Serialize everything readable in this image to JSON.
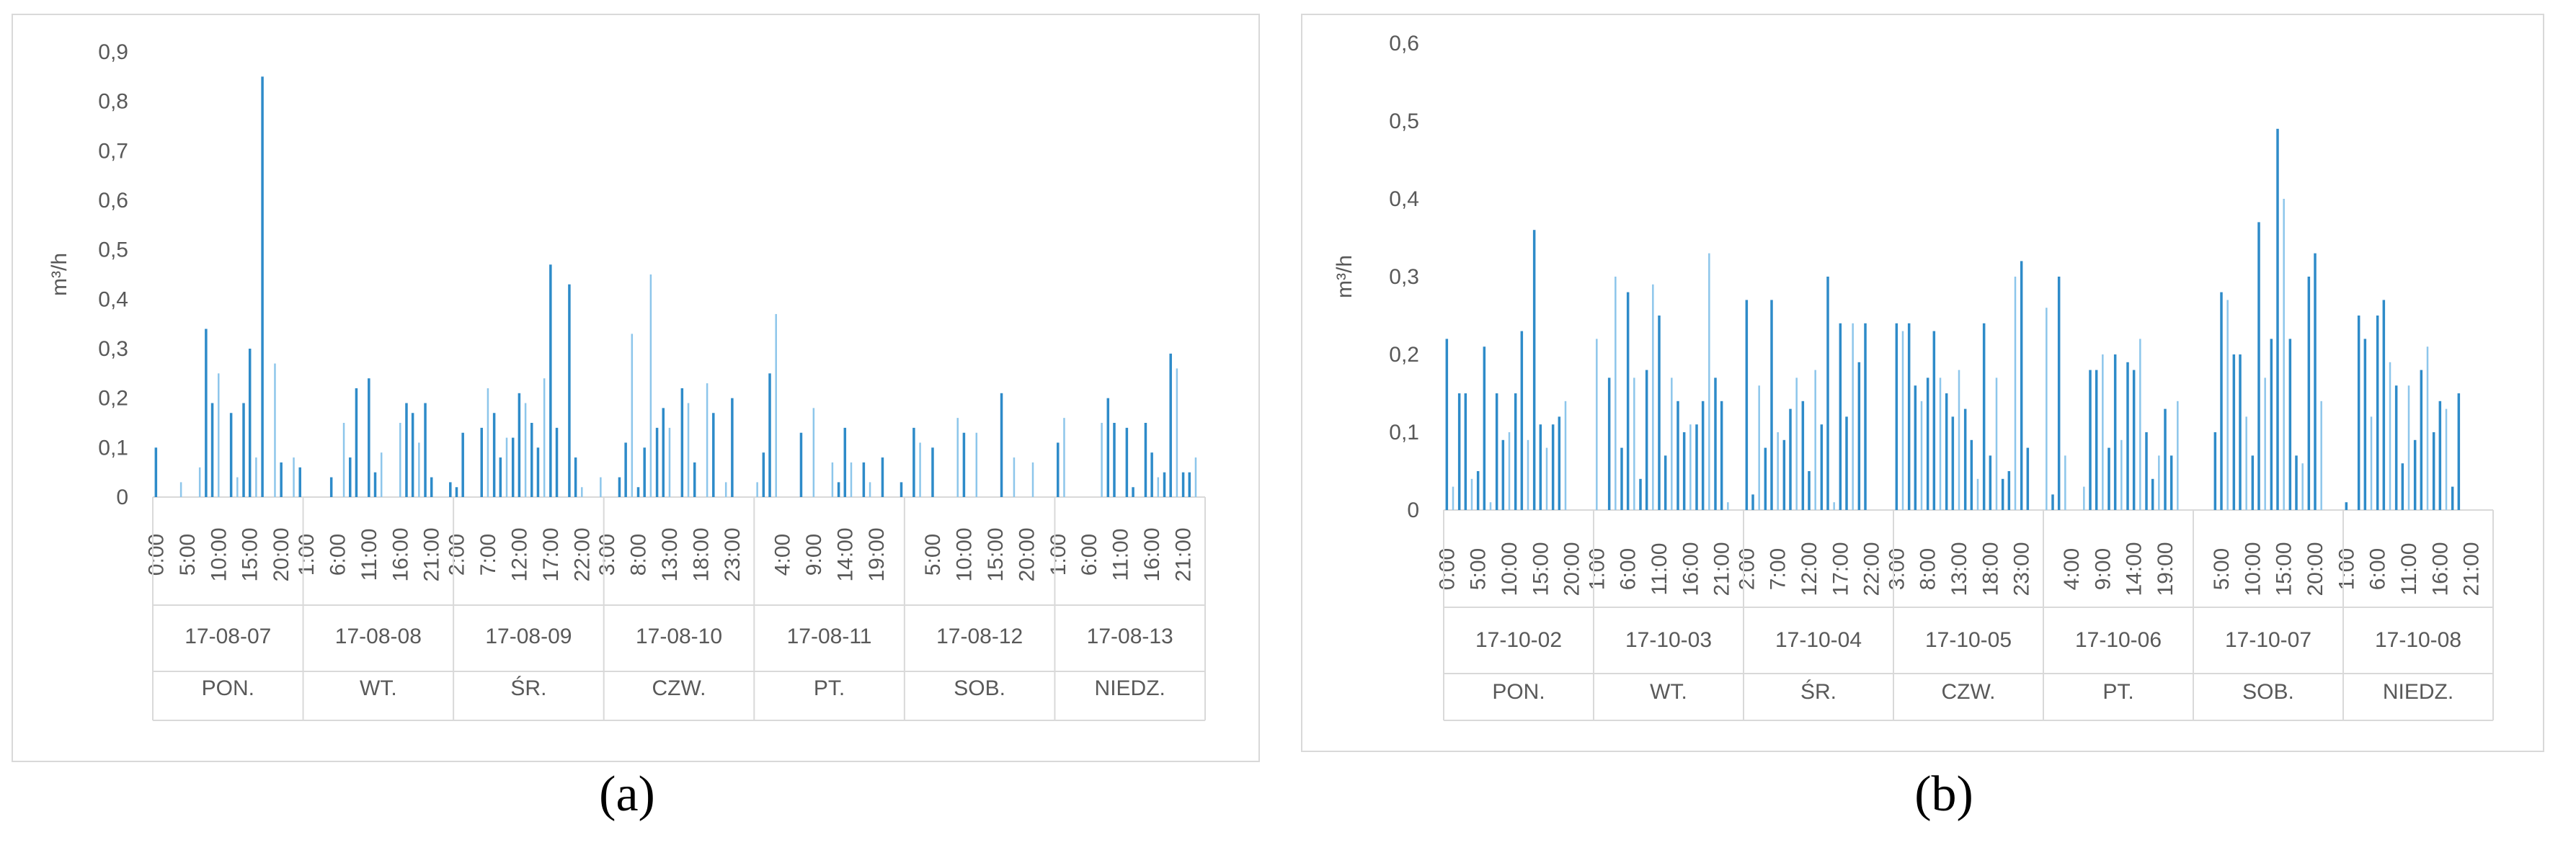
{
  "charts": [
    {
      "id": "a",
      "caption": "(a)",
      "chart_data": {
        "type": "bar",
        "ylabel": "m³/h",
        "ylim": [
          0,
          0.9
        ],
        "yticks": [
          "0",
          "0,1",
          "0,2",
          "0,3",
          "0,4",
          "0,5",
          "0,6",
          "0,7",
          "0,8",
          "0,9"
        ],
        "grid": false,
        "days": [
          {
            "date": "17-08-07",
            "weekday": "PON.",
            "start_hour": 0,
            "tick_labels": [
              "0:00",
              "5:00",
              "10:00",
              "15:00",
              "20:00"
            ],
            "values": [
              0.1,
              0,
              0,
              0,
              0.03,
              0,
              0,
              0.06,
              0.34,
              0.19,
              0.25,
              0,
              0.17,
              0.04,
              0.19,
              0.3,
              0.08,
              0.85,
              0,
              0.27,
              0.07,
              0,
              0.08,
              0.06
            ]
          },
          {
            "date": "17-08-08",
            "weekday": "WT.",
            "start_hour": 1,
            "tick_labels": [
              "1:00",
              "6:00",
              "11:00",
              "16:00",
              "21:00"
            ],
            "values": [
              0,
              0,
              0,
              0,
              0.04,
              0,
              0.15,
              0.08,
              0.22,
              0,
              0.24,
              0.05,
              0.09,
              0,
              0,
              0.15,
              0.19,
              0.17,
              0.11,
              0.19,
              0.04,
              0,
              0,
              0.03
            ]
          },
          {
            "date": "17-08-09",
            "weekday": "ŚR.",
            "start_hour": 2,
            "tick_labels": [
              "2:00",
              "7:00",
              "12:00",
              "17:00",
              "22:00"
            ],
            "values": [
              0.02,
              0.13,
              0,
              0,
              0.14,
              0.22,
              0.17,
              0.08,
              0.12,
              0.12,
              0.21,
              0.19,
              0.15,
              0.1,
              0.24,
              0.47,
              0.14,
              0,
              0.43,
              0.08,
              0.02,
              0,
              0,
              0.04
            ]
          },
          {
            "date": "17-08-10",
            "weekday": "CZW.",
            "start_hour": 3,
            "tick_labels": [
              "3:00",
              "8:00",
              "13:00",
              "18:00",
              "23:00"
            ],
            "values": [
              0,
              0,
              0.04,
              0.11,
              0.33,
              0.02,
              0.1,
              0.45,
              0.14,
              0.18,
              0.14,
              0,
              0.22,
              0.19,
              0.07,
              0,
              0.23,
              0.17,
              0,
              0.03,
              0.2,
              0,
              0,
              0
            ]
          },
          {
            "date": "17-08-11",
            "weekday": "PT.",
            "start_hour": 4,
            "tick_labels": [
              "4:00",
              "9:00",
              "14:00",
              "19:00"
            ],
            "values": [
              0.03,
              0.09,
              0.25,
              0.37,
              0,
              0,
              0,
              0.13,
              0,
              0.18,
              0,
              0,
              0.07,
              0.03,
              0.14,
              0.07,
              0,
              0.07,
              0.03,
              0,
              0.08,
              0,
              0,
              0.03
            ]
          },
          {
            "date": "17-08-12",
            "weekday": "SOB.",
            "start_hour": 0,
            "tick_labels": [
              "5:00",
              "10:00",
              "15:00",
              "20:00"
            ],
            "values": [
              0,
              0.14,
              0.11,
              0,
              0.1,
              0,
              0,
              0,
              0.16,
              0.13,
              0,
              0.13,
              0,
              0,
              0,
              0.21,
              0,
              0.08,
              0,
              0,
              0.07,
              0,
              0,
              0
            ]
          },
          {
            "date": "17-08-13",
            "weekday": "NIEDZ.",
            "start_hour": 1,
            "tick_labels": [
              "1:00",
              "6:00",
              "11:00",
              "16:00",
              "21:00"
            ],
            "values": [
              0.11,
              0.16,
              0,
              0,
              0,
              0,
              0,
              0.15,
              0.2,
              0.15,
              0,
              0.14,
              0.02,
              0,
              0.15,
              0.09,
              0.04,
              0.05,
              0.29,
              0.26,
              0.05,
              0.05,
              0.08,
              0
            ]
          }
        ]
      }
    },
    {
      "id": "b",
      "caption": "(b)",
      "chart_data": {
        "type": "bar",
        "ylabel": "m³/h",
        "ylim": [
          0,
          0.6
        ],
        "yticks": [
          "0",
          "0,1",
          "0,2",
          "0,3",
          "0,4",
          "0,5",
          "0,6"
        ],
        "grid": false,
        "days": [
          {
            "date": "17-10-02",
            "weekday": "PON.",
            "start_hour": 0,
            "tick_labels": [
              "0:00",
              "5:00",
              "10:00",
              "15:00",
              "20:00"
            ],
            "values": [
              0.22,
              0.03,
              0.15,
              0.15,
              0.04,
              0.05,
              0.21,
              0.01,
              0.15,
              0.09,
              0.1,
              0.15,
              0.23,
              0.09,
              0.36,
              0.11,
              0.08,
              0.11,
              0.12,
              0.14,
              0,
              0,
              0,
              0
            ]
          },
          {
            "date": "17-10-03",
            "weekday": "WT.",
            "start_hour": 1,
            "tick_labels": [
              "1:00",
              "6:00",
              "11:00",
              "16:00",
              "21:00"
            ],
            "values": [
              0.22,
              0,
              0.17,
              0.3,
              0.08,
              0.28,
              0.17,
              0.04,
              0.18,
              0.29,
              0.25,
              0.07,
              0.17,
              0.14,
              0.1,
              0.11,
              0.11,
              0.14,
              0.33,
              0.17,
              0.14,
              0.01,
              0,
              0
            ]
          },
          {
            "date": "17-10-04",
            "weekday": "ŚR.",
            "start_hour": 2,
            "tick_labels": [
              "2:00",
              "7:00",
              "12:00",
              "17:00",
              "22:00"
            ],
            "values": [
              0.27,
              0.02,
              0.16,
              0.08,
              0.27,
              0.1,
              0.09,
              0.13,
              0.17,
              0.14,
              0.05,
              0.18,
              0.11,
              0.3,
              0.01,
              0.24,
              0.12,
              0.24,
              0.19,
              0.24,
              0,
              0,
              0,
              0
            ]
          },
          {
            "date": "17-10-05",
            "weekday": "CZW.",
            "start_hour": 3,
            "tick_labels": [
              "3:00",
              "8:00",
              "13:00",
              "18:00",
              "23:00"
            ],
            "values": [
              0.24,
              0.23,
              0.24,
              0.16,
              0.14,
              0.17,
              0.23,
              0.17,
              0.15,
              0.12,
              0.18,
              0.13,
              0.09,
              0.04,
              0.24,
              0.07,
              0.17,
              0.04,
              0.05,
              0.3,
              0.32,
              0.08,
              0,
              0
            ]
          },
          {
            "date": "17-10-06",
            "weekday": "PT.",
            "start_hour": 4,
            "tick_labels": [
              "4:00",
              "9:00",
              "14:00",
              "19:00"
            ],
            "values": [
              0.26,
              0.02,
              0.3,
              0.07,
              0,
              0,
              0.03,
              0.18,
              0.18,
              0.2,
              0.08,
              0.2,
              0.09,
              0.19,
              0.18,
              0.22,
              0.1,
              0.04,
              0.07,
              0.13,
              0.07,
              0.14,
              0,
              0
            ]
          },
          {
            "date": "17-10-07",
            "weekday": "SOB.",
            "start_hour": 0,
            "tick_labels": [
              "5:00",
              "10:00",
              "15:00",
              "20:00"
            ],
            "values": [
              0,
              0,
              0,
              0.1,
              0.28,
              0.27,
              0.2,
              0.2,
              0.12,
              0.07,
              0.37,
              0.17,
              0.22,
              0.49,
              0.4,
              0.22,
              0.07,
              0.06,
              0.3,
              0.33,
              0.14,
              0,
              0,
              0
            ]
          },
          {
            "date": "17-10-08",
            "weekday": "NIEDZ.",
            "start_hour": 1,
            "tick_labels": [
              "1:00",
              "6:00",
              "11:00",
              "16:00",
              "21:00"
            ],
            "values": [
              0.01,
              0,
              0.25,
              0.22,
              0.12,
              0.25,
              0.27,
              0.19,
              0.16,
              0.06,
              0.16,
              0.09,
              0.18,
              0.21,
              0.1,
              0.14,
              0.13,
              0.03,
              0.15,
              0,
              0,
              0,
              0,
              0
            ]
          }
        ]
      }
    }
  ],
  "colors": {
    "bar_dark": "#2E8BC9",
    "bar_light": "#8DC6EB",
    "axis": "#D9D9D9",
    "text": "#595959",
    "frame": "#D9D9D9"
  }
}
